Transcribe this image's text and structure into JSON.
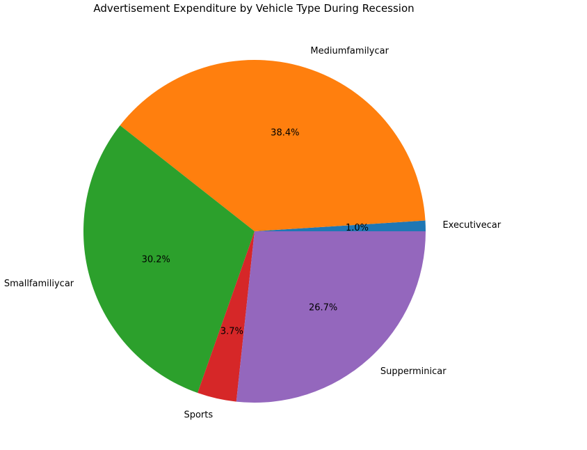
{
  "chart_data": {
    "type": "pie",
    "title": "Advertisement Expenditure by Vehicle Type During Recession",
    "categories": [
      "Executivecar",
      "Mediumfamilycar",
      "Smallfamiliycar",
      "Sports",
      "Supperminicar"
    ],
    "values": [
      1.0,
      38.4,
      30.2,
      3.7,
      26.7
    ],
    "percent_labels": [
      "1.0%",
      "38.4%",
      "30.2%",
      "3.7%",
      "26.7%"
    ],
    "colors": [
      "#1f77b4",
      "#ff7f0e",
      "#2ca02c",
      "#d62728",
      "#9467bd"
    ],
    "start_angle": 0,
    "direction": "counterclockwise",
    "legend": "none"
  }
}
